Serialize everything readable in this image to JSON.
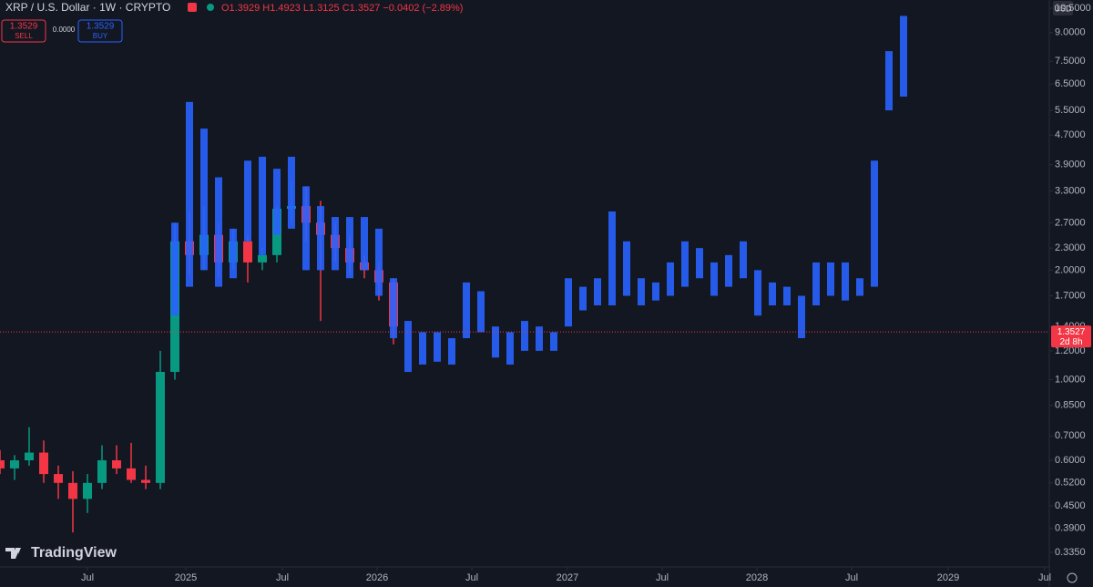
{
  "header": {
    "symbol": "XRP / U.S. Dollar · 1W · CRYPTO",
    "ohlc": "O1.3929 H1.4923 L1.3125 C1.3527 −0.0402 (−2.89%)",
    "sell_price": "1.3529",
    "sell": "SELL",
    "spread": "0.0000",
    "buy_price": "1.3529",
    "buy": "BUY",
    "currency": "USD",
    "brand": "TradingView"
  },
  "chart_data": {
    "type": "candlestick",
    "log_scale": true,
    "ylim": [
      0.309,
      11.06
    ],
    "yticks": [
      {
        "value": 10.5,
        "label": "10.5000"
      },
      {
        "value": 9,
        "label": "9.0000"
      },
      {
        "value": 7.5,
        "label": "7.5000"
      },
      {
        "value": 6.5,
        "label": "6.5000"
      },
      {
        "value": 5.5,
        "label": "5.5000"
      },
      {
        "value": 4.7,
        "label": "4.7000"
      },
      {
        "value": 3.9,
        "label": "3.9000"
      },
      {
        "value": 3.3,
        "label": "3.3000"
      },
      {
        "value": 2.7,
        "label": "2.7000"
      },
      {
        "value": 2.3,
        "label": "2.3000"
      },
      {
        "value": 2,
        "label": "2.0000"
      },
      {
        "value": 1.7,
        "label": "1.7000"
      },
      {
        "value": 1.4,
        "label": "1.4000"
      },
      {
        "value": 1.2,
        "label": "1.2000"
      },
      {
        "value": 1,
        "label": "1.0000"
      },
      {
        "value": 0.85,
        "label": "0.8500"
      },
      {
        "value": 0.7,
        "label": "0.7000"
      },
      {
        "value": 0.6,
        "label": "0.6000"
      },
      {
        "value": 0.52,
        "label": "0.5200"
      },
      {
        "value": 0.45,
        "label": "0.4500"
      },
      {
        "value": 0.39,
        "label": "0.3900"
      },
      {
        "value": 0.335,
        "label": "0.3350"
      }
    ],
    "xlim": [
      0,
      288
    ],
    "xticks": [
      {
        "value": 24,
        "label": "Jul"
      },
      {
        "value": 51,
        "label": "2025"
      },
      {
        "value": 77.5,
        "label": "Jul"
      },
      {
        "value": 103.5,
        "label": "2026"
      },
      {
        "value": 129.5,
        "label": "Jul"
      },
      {
        "value": 155.75,
        "label": "2027"
      },
      {
        "value": 181.75,
        "label": "Jul"
      },
      {
        "value": 207.75,
        "label": "2028"
      },
      {
        "value": 233.75,
        "label": "Jul"
      },
      {
        "value": 260.25,
        "label": "2029"
      },
      {
        "value": 286.75,
        "label": "Jul"
      }
    ],
    "up_color": "#089981",
    "down_color": "#f23645",
    "series": [
      {
        "x": [
          0,
          4,
          8,
          12,
          16,
          20,
          24,
          28,
          32,
          36,
          40,
          44,
          48,
          52,
          56,
          60,
          64,
          68,
          72,
          76,
          80,
          84,
          88,
          92,
          96,
          100,
          104,
          108
        ],
        "open": [
          0.6,
          0.57,
          0.6,
          0.63,
          0.55,
          0.52,
          0.47,
          0.52,
          0.6,
          0.57,
          0.53,
          0.52,
          1.05,
          2.4,
          2.2,
          2.5,
          2.1,
          2.4,
          2.1,
          2.2,
          2.95,
          3.0,
          2.7,
          2.5,
          2.3,
          2.1,
          2.0,
          1.85
        ],
        "high": [
          0.64,
          0.62,
          0.74,
          0.68,
          0.58,
          0.56,
          0.55,
          0.66,
          0.66,
          0.67,
          0.58,
          1.2,
          2.7,
          2.9,
          3.0,
          2.7,
          2.6,
          2.5,
          2.3,
          3.0,
          3.5,
          3.4,
          3.1,
          2.7,
          2.5,
          2.2,
          2.1,
          1.9
        ],
        "low": [
          0.55,
          0.53,
          0.58,
          0.52,
          0.47,
          0.38,
          0.43,
          0.5,
          0.55,
          0.52,
          0.5,
          0.5,
          1.0,
          1.95,
          2.0,
          1.9,
          2.0,
          1.85,
          2.0,
          2.1,
          2.7,
          2.4,
          1.45,
          2.1,
          1.95,
          1.9,
          1.65,
          1.25
        ],
        "close": [
          0.57,
          0.6,
          0.63,
          0.55,
          0.52,
          0.47,
          0.52,
          0.6,
          0.57,
          0.53,
          0.52,
          1.05,
          2.4,
          2.2,
          2.5,
          2.1,
          2.4,
          2.1,
          2.2,
          2.95,
          3.0,
          2.7,
          2.5,
          2.3,
          2.1,
          2.0,
          1.85,
          1.4
        ]
      },
      {
        "color": "#2962ff",
        "x": [
          48,
          52,
          56,
          60,
          64,
          68,
          72,
          76,
          80,
          84,
          88,
          92,
          96,
          100,
          104,
          108,
          112,
          116,
          120,
          124,
          128,
          132,
          136,
          140,
          144,
          148,
          152,
          156,
          160,
          164,
          168,
          172,
          176,
          180,
          184,
          188,
          192,
          196,
          200,
          204,
          208,
          212,
          216,
          220,
          224,
          228,
          232,
          236,
          240,
          244,
          248
        ],
        "high": [
          2.7,
          5.8,
          4.9,
          3.6,
          2.6,
          4.0,
          4.1,
          3.8,
          4.1,
          3.4,
          3.0,
          2.8,
          2.8,
          2.8,
          2.6,
          1.9,
          1.45,
          1.35,
          1.35,
          1.3,
          1.85,
          1.75,
          1.4,
          1.35,
          1.45,
          1.4,
          1.35,
          1.9,
          1.8,
          1.9,
          2.9,
          2.4,
          1.9,
          1.85,
          2.1,
          2.4,
          2.3,
          2.1,
          2.2,
          2.4,
          2.0,
          1.85,
          1.8,
          1.7,
          2.1,
          2.1,
          2.1,
          1.9,
          4.0,
          8.0,
          10.0
        ],
        "low": [
          1.5,
          1.8,
          2.0,
          1.8,
          1.9,
          2.4,
          2.2,
          2.5,
          2.6,
          2.0,
          2.0,
          2.0,
          1.9,
          2.0,
          1.7,
          1.3,
          1.05,
          1.1,
          1.12,
          1.1,
          1.3,
          1.35,
          1.15,
          1.1,
          1.2,
          1.2,
          1.2,
          1.4,
          1.55,
          1.6,
          1.6,
          1.7,
          1.6,
          1.65,
          1.7,
          1.8,
          1.9,
          1.7,
          1.8,
          1.9,
          1.5,
          1.6,
          1.6,
          1.3,
          1.6,
          1.7,
          1.65,
          1.7,
          1.8,
          5.5,
          6.0
        ]
      }
    ],
    "last_price": 1.3527,
    "countdown": "2d 8h",
    "price_line_color": "#f23645"
  }
}
